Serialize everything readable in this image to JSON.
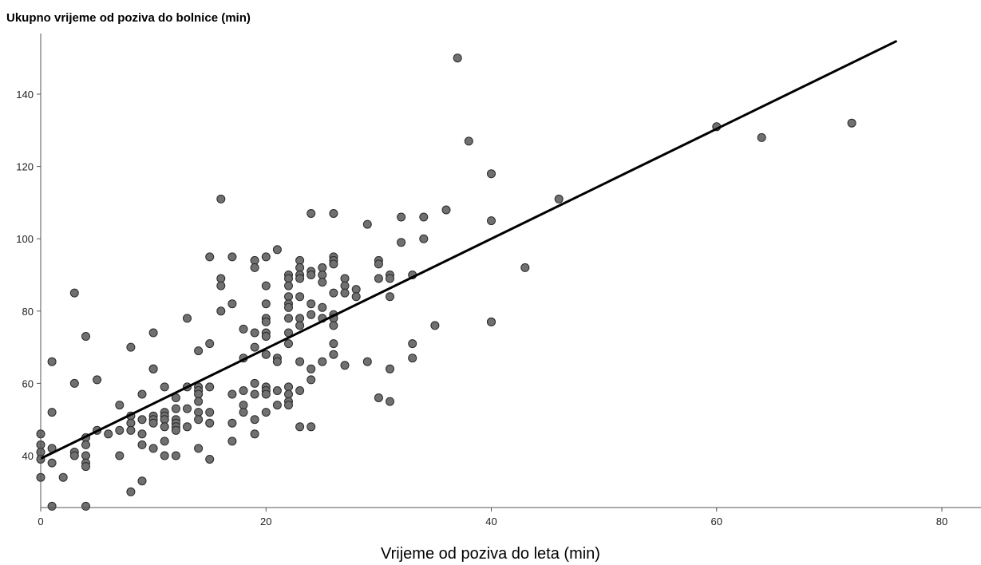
{
  "chart_data": {
    "type": "scatter",
    "title": "",
    "ylabel": "Ukupno vrijeme od poziva do bolnice (min)",
    "xlabel": "Vrijeme od poziva do leta (min)",
    "xlim": [
      0,
      83
    ],
    "ylim": [
      25,
      157
    ],
    "xticks": [
      0,
      20,
      40,
      60,
      80
    ],
    "yticks": [
      40,
      60,
      80,
      100,
      120,
      140
    ],
    "grid": false,
    "legend": "none",
    "point_color": "#707070",
    "line_color": "#000000",
    "fit_line": {
      "intercept": 39.2,
      "slope": 1.52,
      "x_range": [
        0,
        76
      ]
    },
    "points": [
      [
        0,
        46
      ],
      [
        0,
        43
      ],
      [
        0,
        41
      ],
      [
        0,
        39
      ],
      [
        0,
        34
      ],
      [
        1,
        66
      ],
      [
        1,
        52
      ],
      [
        1,
        42
      ],
      [
        1,
        38
      ],
      [
        1,
        26
      ],
      [
        2,
        34
      ],
      [
        3,
        85
      ],
      [
        3,
        60
      ],
      [
        3,
        41
      ],
      [
        3,
        40
      ],
      [
        4,
        73
      ],
      [
        4,
        45
      ],
      [
        4,
        43
      ],
      [
        4,
        40
      ],
      [
        4,
        38
      ],
      [
        4,
        37
      ],
      [
        4,
        26
      ],
      [
        5,
        61
      ],
      [
        5,
        47
      ],
      [
        6,
        46
      ],
      [
        7,
        54
      ],
      [
        7,
        47
      ],
      [
        7,
        40
      ],
      [
        8,
        70
      ],
      [
        8,
        51
      ],
      [
        8,
        49
      ],
      [
        8,
        47
      ],
      [
        8,
        30
      ],
      [
        9,
        57
      ],
      [
        9,
        50
      ],
      [
        9,
        46
      ],
      [
        9,
        43
      ],
      [
        9,
        33
      ],
      [
        10,
        74
      ],
      [
        10,
        64
      ],
      [
        10,
        64
      ],
      [
        10,
        51
      ],
      [
        10,
        50
      ],
      [
        10,
        49
      ],
      [
        10,
        42
      ],
      [
        11,
        59
      ],
      [
        11,
        52
      ],
      [
        11,
        51
      ],
      [
        11,
        50
      ],
      [
        11,
        48
      ],
      [
        11,
        44
      ],
      [
        11,
        40
      ],
      [
        12,
        56
      ],
      [
        12,
        53
      ],
      [
        12,
        50
      ],
      [
        12,
        49
      ],
      [
        12,
        48
      ],
      [
        12,
        47
      ],
      [
        12,
        40
      ],
      [
        13,
        78
      ],
      [
        13,
        59
      ],
      [
        13,
        53
      ],
      [
        13,
        48
      ],
      [
        14,
        69
      ],
      [
        14,
        59
      ],
      [
        14,
        58
      ],
      [
        14,
        57
      ],
      [
        14,
        55
      ],
      [
        14,
        52
      ],
      [
        14,
        50
      ],
      [
        14,
        42
      ],
      [
        15,
        95
      ],
      [
        15,
        71
      ],
      [
        15,
        59
      ],
      [
        15,
        52
      ],
      [
        15,
        49
      ],
      [
        15,
        39
      ],
      [
        16,
        111
      ],
      [
        16,
        89
      ],
      [
        16,
        87
      ],
      [
        16,
        80
      ],
      [
        17,
        95
      ],
      [
        17,
        82
      ],
      [
        17,
        57
      ],
      [
        17,
        49
      ],
      [
        17,
        44
      ],
      [
        18,
        75
      ],
      [
        18,
        67
      ],
      [
        18,
        58
      ],
      [
        18,
        54
      ],
      [
        18,
        52
      ],
      [
        19,
        94
      ],
      [
        19,
        92
      ],
      [
        19,
        74
      ],
      [
        19,
        70
      ],
      [
        19,
        60
      ],
      [
        19,
        57
      ],
      [
        19,
        50
      ],
      [
        19,
        46
      ],
      [
        20,
        95
      ],
      [
        20,
        87
      ],
      [
        20,
        82
      ],
      [
        20,
        78
      ],
      [
        20,
        77
      ],
      [
        20,
        74
      ],
      [
        20,
        73
      ],
      [
        20,
        68
      ],
      [
        20,
        59
      ],
      [
        20,
        58
      ],
      [
        20,
        57
      ],
      [
        20,
        52
      ],
      [
        21,
        97
      ],
      [
        21,
        67
      ],
      [
        21,
        66
      ],
      [
        21,
        58
      ],
      [
        21,
        54
      ],
      [
        22,
        90
      ],
      [
        22,
        89
      ],
      [
        22,
        87
      ],
      [
        22,
        84
      ],
      [
        22,
        82
      ],
      [
        22,
        81
      ],
      [
        22,
        78
      ],
      [
        22,
        74
      ],
      [
        22,
        71
      ],
      [
        22,
        59
      ],
      [
        22,
        57
      ],
      [
        22,
        55
      ],
      [
        22,
        54
      ],
      [
        23,
        94
      ],
      [
        23,
        92
      ],
      [
        23,
        90
      ],
      [
        23,
        89
      ],
      [
        23,
        84
      ],
      [
        23,
        78
      ],
      [
        23,
        76
      ],
      [
        23,
        66
      ],
      [
        23,
        58
      ],
      [
        23,
        48
      ],
      [
        24,
        107
      ],
      [
        24,
        91
      ],
      [
        24,
        90
      ],
      [
        24,
        82
      ],
      [
        24,
        79
      ],
      [
        24,
        64
      ],
      [
        24,
        61
      ],
      [
        24,
        48
      ],
      [
        25,
        92
      ],
      [
        25,
        90
      ],
      [
        25,
        88
      ],
      [
        25,
        81
      ],
      [
        25,
        78
      ],
      [
        25,
        66
      ],
      [
        26,
        107
      ],
      [
        26,
        95
      ],
      [
        26,
        94
      ],
      [
        26,
        93
      ],
      [
        26,
        85
      ],
      [
        26,
        79
      ],
      [
        26,
        78
      ],
      [
        26,
        76
      ],
      [
        26,
        71
      ],
      [
        26,
        68
      ],
      [
        27,
        89
      ],
      [
        27,
        87
      ],
      [
        27,
        85
      ],
      [
        27,
        65
      ],
      [
        28,
        86
      ],
      [
        28,
        84
      ],
      [
        29,
        104
      ],
      [
        29,
        66
      ],
      [
        30,
        94
      ],
      [
        30,
        93
      ],
      [
        30,
        89
      ],
      [
        30,
        56
      ],
      [
        31,
        90
      ],
      [
        31,
        89
      ],
      [
        31,
        84
      ],
      [
        31,
        64
      ],
      [
        31,
        55
      ],
      [
        32,
        106
      ],
      [
        32,
        99
      ],
      [
        33,
        90
      ],
      [
        33,
        71
      ],
      [
        33,
        67
      ],
      [
        34,
        106
      ],
      [
        34,
        100
      ],
      [
        35,
        76
      ],
      [
        36,
        108
      ],
      [
        37,
        150
      ],
      [
        38,
        127
      ],
      [
        40,
        118
      ],
      [
        40,
        105
      ],
      [
        40,
        77
      ],
      [
        40,
        77
      ],
      [
        43,
        92
      ],
      [
        46,
        111
      ],
      [
        60,
        131
      ],
      [
        64,
        128
      ],
      [
        72,
        132
      ]
    ]
  }
}
